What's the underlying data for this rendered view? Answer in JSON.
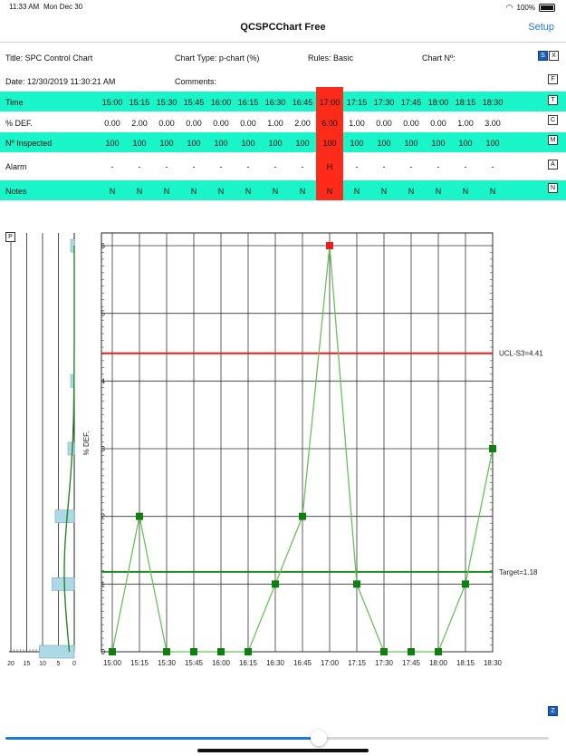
{
  "status_bar": {
    "time": "11:33 AM",
    "date": "Mon Dec 30",
    "battery": "100%"
  },
  "nav": {
    "title": "QCSPCChart Free",
    "setup_label": "Setup"
  },
  "info": {
    "title": "Title: SPC Control Chart",
    "chart_type": "Chart Type: p-chart (%)",
    "rules": "Rules: Basic",
    "chart_no": "Chart Nº:",
    "date": "Date: 12/30/2019 11:30:21 AM",
    "comments": "Comments:"
  },
  "buttons": {
    "s": "S",
    "x": "X",
    "f": "F",
    "t": "T",
    "c": "C",
    "m": "M",
    "a": "A",
    "n": "N",
    "p": "P",
    "z": "Z"
  },
  "table": {
    "time_label": "Time",
    "def_label": "% DEF.",
    "inspected_label": "Nº Inspected",
    "alarm_label": "Alarm",
    "notes_label": "Notes",
    "times": [
      "15:00",
      "15:15",
      "15:30",
      "15:45",
      "16:00",
      "16:15",
      "16:30",
      "16:45",
      "17:00",
      "17:15",
      "17:30",
      "17:45",
      "18:00",
      "18:15",
      "18:30"
    ],
    "def_values": [
      "0.00",
      "2.00",
      "0.00",
      "0.00",
      "0.00",
      "0.00",
      "1.00",
      "2.00",
      "6.00",
      "1.00",
      "0.00",
      "0.00",
      "0.00",
      "1.00",
      "3.00"
    ],
    "inspected": [
      "100",
      "100",
      "100",
      "100",
      "100",
      "100",
      "100",
      "100",
      "100",
      "100",
      "100",
      "100",
      "100",
      "100",
      "100"
    ],
    "alarms": [
      "-",
      "-",
      "-",
      "-",
      "-",
      "-",
      "-",
      "-",
      "H",
      "-",
      "-",
      "-",
      "-",
      "-",
      "-"
    ],
    "notes": [
      "N",
      "N",
      "N",
      "N",
      "N",
      "N",
      "N",
      "N",
      "N",
      "N",
      "N",
      "N",
      "N",
      "N",
      "N"
    ]
  },
  "chart_data": {
    "type": "line",
    "x": [
      "15:00",
      "15:15",
      "15:30",
      "15:45",
      "16:00",
      "16:15",
      "16:30",
      "16:45",
      "17:00",
      "17:15",
      "17:30",
      "17:45",
      "18:00",
      "18:15",
      "18:30"
    ],
    "values": [
      0,
      2,
      0,
      0,
      0,
      0,
      1,
      2,
      6,
      1,
      0,
      0,
      0,
      1,
      3
    ],
    "ylabel": "% DEF.",
    "ylim": [
      0,
      6.2
    ],
    "yticks": [
      "0",
      "1",
      "2",
      "3",
      "4",
      "5",
      "6"
    ],
    "ucl": {
      "label": "UCL-S3=4.41",
      "value": 4.41,
      "color": "#ee1c1c"
    },
    "target": {
      "label": "Target=1.18",
      "value": 1.18,
      "color": "#1f8a1f"
    },
    "line_color": "#6ac15c",
    "marker_color": "#0f7f0f",
    "alarm_marker_color": "#ee1c1c",
    "histogram": {
      "xticks": [
        "20",
        "15",
        "10",
        "5",
        "0"
      ],
      "bars": [
        {
          "y": 0,
          "count": 11
        },
        {
          "y": 1,
          "count": 7
        },
        {
          "y": 2,
          "count": 6
        },
        {
          "y": 3,
          "count": 2
        },
        {
          "y": 4,
          "count": 0.5
        },
        {
          "y": 6,
          "count": 0.5
        }
      ],
      "bar_color": "#add8e6"
    },
    "grid": true
  }
}
